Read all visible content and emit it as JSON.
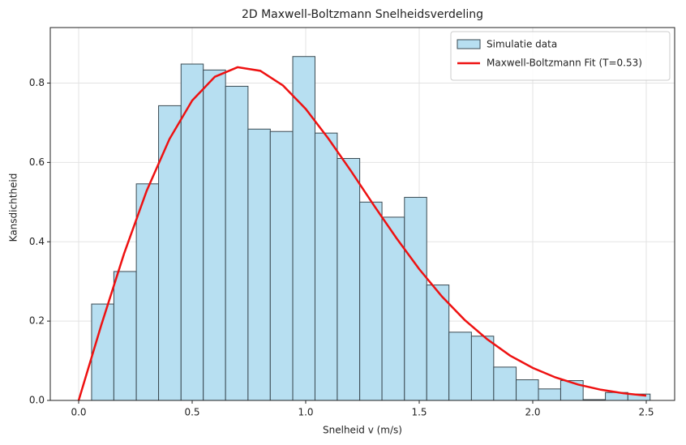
{
  "chart_data": {
    "type": "histogram",
    "title": "2D Maxwell-Boltzmann Snelheidsverdeling",
    "xlabel": "Snelheid v (m/s)",
    "ylabel": "Kansdichtheid",
    "xlim": [
      -0.125,
      2.625
    ],
    "ylim": [
      0,
      0.94
    ],
    "xticks": [
      {
        "value": 0,
        "label": "0.0"
      },
      0.5,
      {
        "value": 1,
        "label": "1.0"
      },
      1.5,
      {
        "value": 2,
        "label": "2.0"
      },
      2.5
    ],
    "yticks": [
      {
        "value": 0,
        "label": "0.0"
      },
      0.2,
      0.4,
      0.6,
      0.8
    ],
    "grid": true,
    "legend": "upper right",
    "series": [
      {
        "name": "Simulatie data",
        "type": "histogram",
        "color": "#b7dff1",
        "edgecolor": "#3a4a52",
        "bins": [
          0.057,
          0.155,
          0.254,
          0.352,
          0.451,
          0.549,
          0.647,
          0.746,
          0.844,
          0.943,
          1.041,
          1.139,
          1.238,
          1.336,
          1.435,
          1.533,
          1.631,
          1.73,
          1.828,
          1.927,
          2.025,
          2.123,
          2.222,
          2.32,
          2.419,
          2.517
        ],
        "values": [
          0.243,
          0.325,
          0.546,
          0.743,
          0.848,
          0.833,
          0.792,
          0.684,
          0.678,
          0.867,
          0.674,
          0.61,
          0.5,
          0.462,
          0.512,
          0.291,
          0.172,
          0.162,
          0.084,
          0.052,
          0.029,
          0.05,
          0.002,
          0.02,
          0.016
        ]
      },
      {
        "name": "Maxwell-Boltzmann Fit (T=0.53)",
        "type": "line",
        "color": "#ee1111",
        "x": [
          0,
          0.1,
          0.2,
          0.3,
          0.4,
          0.5,
          0.6,
          0.7,
          0.8,
          0.9,
          1.0,
          1.1,
          1.2,
          1.3,
          1.4,
          1.5,
          1.6,
          1.7,
          1.8,
          1.9,
          2.0,
          2.1,
          2.2,
          2.3,
          2.4,
          2.5
        ],
        "values": [
          0,
          0.1905,
          0.37,
          0.529,
          0.659,
          0.756,
          0.816,
          0.84,
          0.831,
          0.794,
          0.735,
          0.66,
          0.578,
          0.492,
          0.409,
          0.331,
          0.262,
          0.203,
          0.154,
          0.113,
          0.082,
          0.058,
          0.04,
          0.027,
          0.018,
          0.012
        ]
      }
    ]
  }
}
